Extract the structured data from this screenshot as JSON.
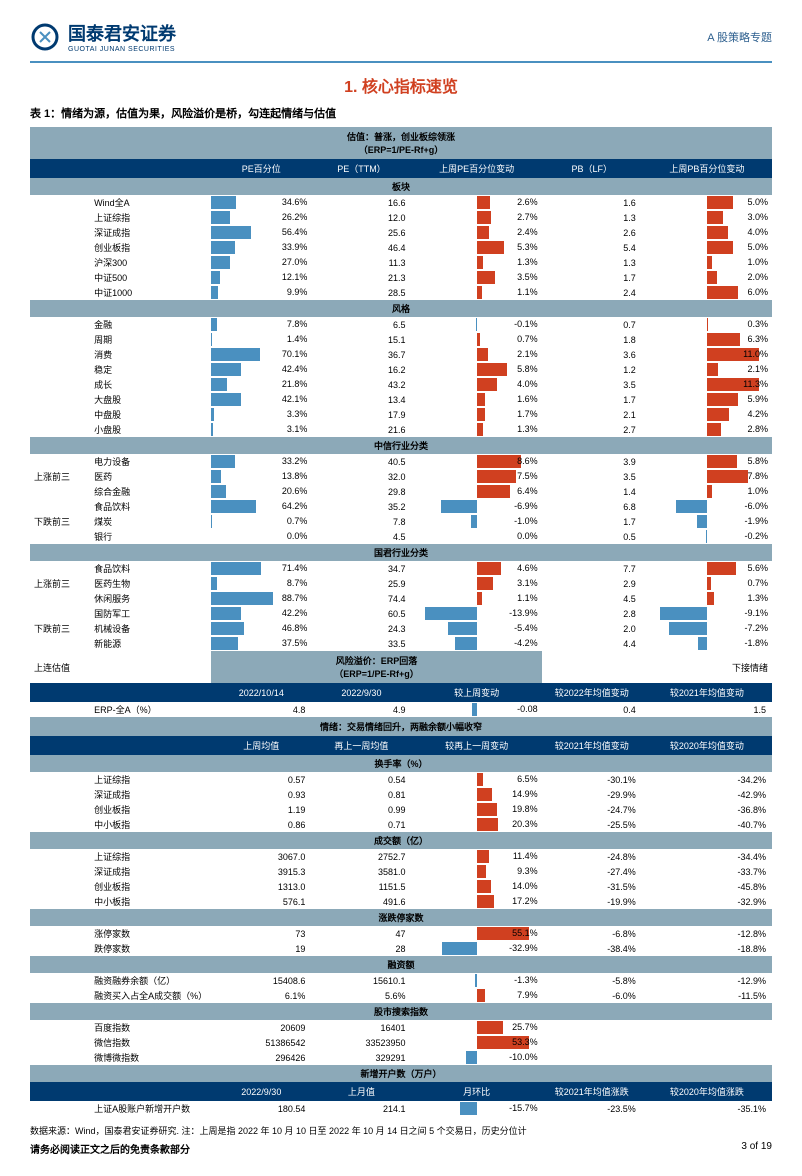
{
  "header": {
    "logo_cn": "国泰君安证券",
    "logo_en": "GUOTAI JUNAN SECURITIES",
    "doc_type": "A 股策略专题"
  },
  "title": "1. 核心指标速览",
  "table_caption": "表 1：情绪为源，估值为果，风险溢价是桥，勾连起情绪与估值",
  "section1_title": "估值：普涨，创业板综领涨\n（ERP=1/PE-Rf+g）",
  "cols1": [
    "PE百分位",
    "PE（TTM）",
    "上周PE百分位变动",
    "PB（LF）",
    "上周PB百分位变动"
  ],
  "subsec": {
    "bankuai": "板块",
    "fengge": "风格",
    "zhongxin": "中信行业分类",
    "guojun": "国君行业分类"
  },
  "bankuai": [
    {
      "name": "Wind全A",
      "pe_pct": "34.6%",
      "pe": "16.6",
      "pe_chg": "2.6%",
      "pe_chg_bar": 26,
      "pb": "1.6",
      "pb_chg": "5.0%",
      "pb_chg_bar": 50
    },
    {
      "name": "上证综指",
      "pe_pct": "26.2%",
      "pe": "12.0",
      "pe_chg": "2.7%",
      "pe_chg_bar": 27,
      "pb": "1.3",
      "pb_chg": "3.0%",
      "pb_chg_bar": 30
    },
    {
      "name": "深证成指",
      "pe_pct": "56.4%",
      "pe": "25.6",
      "pe_chg": "2.4%",
      "pe_chg_bar": 24,
      "pb": "2.6",
      "pb_chg": "4.0%",
      "pb_chg_bar": 40
    },
    {
      "name": "创业板指",
      "pe_pct": "33.9%",
      "pe": "46.4",
      "pe_chg": "5.3%",
      "pe_chg_bar": 53,
      "pb": "5.4",
      "pb_chg": "5.0%",
      "pb_chg_bar": 50
    },
    {
      "name": "沪深300",
      "pe_pct": "27.0%",
      "pe": "11.3",
      "pe_chg": "1.3%",
      "pe_chg_bar": 13,
      "pb": "1.3",
      "pb_chg": "1.0%",
      "pb_chg_bar": 10
    },
    {
      "name": "中证500",
      "pe_pct": "12.1%",
      "pe": "21.3",
      "pe_chg": "3.5%",
      "pe_chg_bar": 35,
      "pb": "1.7",
      "pb_chg": "2.0%",
      "pb_chg_bar": 20
    },
    {
      "name": "中证1000",
      "pe_pct": "9.9%",
      "pe": "28.5",
      "pe_chg": "1.1%",
      "pe_chg_bar": 11,
      "pb": "2.4",
      "pb_chg": "6.0%",
      "pb_chg_bar": 60
    }
  ],
  "fengge": [
    {
      "name": "金融",
      "pe_pct": "7.8%",
      "pe": "6.5",
      "pe_chg": "-0.1%",
      "pe_chg_bar": -1,
      "pb": "0.7",
      "pb_chg": "0.3%",
      "pb_chg_bar": 3
    },
    {
      "name": "周期",
      "pe_pct": "1.4%",
      "pe": "15.1",
      "pe_chg": "0.7%",
      "pe_chg_bar": 7,
      "pb": "1.8",
      "pb_chg": "6.3%",
      "pb_chg_bar": 63
    },
    {
      "name": "消费",
      "pe_pct": "70.1%",
      "pe": "36.7",
      "pe_chg": "2.1%",
      "pe_chg_bar": 21,
      "pb": "3.6",
      "pb_chg": "11.0%",
      "pb_chg_bar": 100
    },
    {
      "name": "稳定",
      "pe_pct": "42.4%",
      "pe": "16.2",
      "pe_chg": "5.8%",
      "pe_chg_bar": 58,
      "pb": "1.2",
      "pb_chg": "2.1%",
      "pb_chg_bar": 21
    },
    {
      "name": "成长",
      "pe_pct": "21.8%",
      "pe": "43.2",
      "pe_chg": "4.0%",
      "pe_chg_bar": 40,
      "pb": "3.5",
      "pb_chg": "11.3%",
      "pb_chg_bar": 100
    },
    {
      "name": "大盘股",
      "pe_pct": "42.1%",
      "pe": "13.4",
      "pe_chg": "1.6%",
      "pe_chg_bar": 16,
      "pb": "1.7",
      "pb_chg": "5.9%",
      "pb_chg_bar": 59
    },
    {
      "name": "中盘股",
      "pe_pct": "3.3%",
      "pe": "17.9",
      "pe_chg": "1.7%",
      "pe_chg_bar": 17,
      "pb": "2.1",
      "pb_chg": "4.2%",
      "pb_chg_bar": 42
    },
    {
      "name": "小盘股",
      "pe_pct": "3.1%",
      "pe": "21.6",
      "pe_chg": "1.3%",
      "pe_chg_bar": 13,
      "pb": "2.7",
      "pb_chg": "2.8%",
      "pb_chg_bar": 28
    }
  ],
  "zhongxin": {
    "up_label": "上涨前三",
    "down_label": "下跌前三",
    "up": [
      {
        "name": "电力设备",
        "pe_pct": "33.2%",
        "pe": "40.5",
        "pe_chg": "8.6%",
        "pe_chg_bar": 86,
        "pb": "3.9",
        "pb_chg": "5.8%",
        "pb_chg_bar": 58
      },
      {
        "name": "医药",
        "pe_pct": "13.8%",
        "pe": "32.0",
        "pe_chg": "7.5%",
        "pe_chg_bar": 75,
        "pb": "3.5",
        "pb_chg": "7.8%",
        "pb_chg_bar": 78
      },
      {
        "name": "综合金融",
        "pe_pct": "20.6%",
        "pe": "29.8",
        "pe_chg": "6.4%",
        "pe_chg_bar": 64,
        "pb": "1.4",
        "pb_chg": "1.0%",
        "pb_chg_bar": 10
      }
    ],
    "down": [
      {
        "name": "食品饮料",
        "pe_pct": "64.2%",
        "pe": "35.2",
        "pe_chg": "-6.9%",
        "pe_chg_bar": -69,
        "pb": "6.8",
        "pb_chg": "-6.0%",
        "pb_chg_bar": -60
      },
      {
        "name": "煤炭",
        "pe_pct": "0.7%",
        "pe": "7.8",
        "pe_chg": "-1.0%",
        "pe_chg_bar": -10,
        "pb": "1.7",
        "pb_chg": "-1.9%",
        "pb_chg_bar": -19
      },
      {
        "name": "银行",
        "pe_pct": "0.0%",
        "pe": "4.5",
        "pe_chg": "0.0%",
        "pe_chg_bar": 0,
        "pb": "0.5",
        "pb_chg": "-0.2%",
        "pb_chg_bar": -2
      }
    ]
  },
  "guojun": {
    "up": [
      {
        "name": "食品饮料",
        "pe_pct": "71.4%",
        "pe": "34.7",
        "pe_chg": "4.6%",
        "pe_chg_bar": 46,
        "pb": "7.7",
        "pb_chg": "5.6%",
        "pb_chg_bar": 56
      },
      {
        "name": "医药生物",
        "pe_pct": "8.7%",
        "pe": "25.9",
        "pe_chg": "3.1%",
        "pe_chg_bar": 31,
        "pb": "2.9",
        "pb_chg": "0.7%",
        "pb_chg_bar": 7
      },
      {
        "name": "休闲服务",
        "pe_pct": "88.7%",
        "pe": "74.4",
        "pe_chg": "1.1%",
        "pe_chg_bar": 11,
        "pb": "4.5",
        "pb_chg": "1.3%",
        "pb_chg_bar": 13
      }
    ],
    "down": [
      {
        "name": "国防军工",
        "pe_pct": "42.2%",
        "pe": "60.5",
        "pe_chg": "-13.9%",
        "pe_chg_bar": -100,
        "pb": "2.8",
        "pb_chg": "-9.1%",
        "pb_chg_bar": -91
      },
      {
        "name": "机械设备",
        "pe_pct": "46.8%",
        "pe": "24.3",
        "pe_chg": "-5.4%",
        "pe_chg_bar": -54,
        "pb": "2.0",
        "pb_chg": "-7.2%",
        "pb_chg_bar": -72
      },
      {
        "name": "新能源",
        "pe_pct": "37.5%",
        "pe": "33.5",
        "pe_chg": "-4.2%",
        "pe_chg_bar": -42,
        "pb": "4.4",
        "pb_chg": "-1.8%",
        "pb_chg_bar": -18
      }
    ]
  },
  "erp_section": {
    "left": "上连估值",
    "title": "风险溢价：ERP回落\n（ERP=1/PE-Rf+g）",
    "right": "下接情绪",
    "cols": [
      "2022/10/14",
      "2022/9/30",
      "较上周变动",
      "较2022年均值变动",
      "较2021年均值变动"
    ],
    "row": {
      "name": "ERP-全A（%）",
      "d1": "4.8",
      "d2": "4.9",
      "chg": "-0.08",
      "chg_bar": -8,
      "y22": "0.4",
      "y21": "1.5"
    }
  },
  "sentiment": {
    "title": "情绪：交易情绪回升，两融余额小幅收窄",
    "cols": [
      "上周均值",
      "再上一周均值",
      "较再上一周变动",
      "较2021年均值变动",
      "较2020年均值变动"
    ],
    "turnover_label": "换手率（%）",
    "turnover": [
      {
        "name": "上证综指",
        "v1": "0.57",
        "v2": "0.54",
        "chg": "6.5%",
        "bar": 13,
        "y21": "-30.1%",
        "y20": "-34.2%"
      },
      {
        "name": "深证成指",
        "v1": "0.93",
        "v2": "0.81",
        "chg": "14.9%",
        "bar": 30,
        "y21": "-29.9%",
        "y20": "-42.9%"
      },
      {
        "name": "创业板指",
        "v1": "1.19",
        "v2": "0.99",
        "chg": "19.8%",
        "bar": 40,
        "y21": "-24.7%",
        "y20": "-36.8%"
      },
      {
        "name": "中小板指",
        "v1": "0.86",
        "v2": "0.71",
        "chg": "20.3%",
        "bar": 41,
        "y21": "-25.5%",
        "y20": "-40.7%"
      }
    ],
    "volume_label": "成交额（亿）",
    "volume": [
      {
        "name": "上证综指",
        "v1": "3067.0",
        "v2": "2752.7",
        "chg": "11.4%",
        "bar": 23,
        "y21": "-24.8%",
        "y20": "-34.4%"
      },
      {
        "name": "深证成指",
        "v1": "3915.3",
        "v2": "3581.0",
        "chg": "9.3%",
        "bar": 19,
        "y21": "-27.4%",
        "y20": "-33.7%"
      },
      {
        "name": "创业板指",
        "v1": "1313.0",
        "v2": "1151.5",
        "chg": "14.0%",
        "bar": 28,
        "y21": "-31.5%",
        "y20": "-45.8%"
      },
      {
        "name": "中小板指",
        "v1": "576.1",
        "v2": "491.6",
        "chg": "17.2%",
        "bar": 34,
        "y21": "-19.9%",
        "y20": "-32.9%"
      }
    ],
    "limit_label": "涨跌停家数",
    "limit": [
      {
        "name": "涨停家数",
        "v1": "73",
        "v2": "47",
        "chg": "55.1%",
        "bar": 100,
        "y21": "-6.8%",
        "y20": "-12.8%"
      },
      {
        "name": "跌停家数",
        "v1": "19",
        "v2": "28",
        "chg": "-32.9%",
        "bar": -66,
        "y21": "-38.4%",
        "y20": "-18.8%"
      }
    ],
    "margin_label": "融资额",
    "margin": [
      {
        "name": "融资融券余额（亿）",
        "v1": "15408.6",
        "v2": "15610.1",
        "chg": "-1.3%",
        "bar": -3,
        "y21": "-5.8%",
        "y20": "-12.9%"
      },
      {
        "name": "融资买入占全A成交额（%）",
        "v1": "6.1%",
        "v2": "5.6%",
        "chg": "7.9%",
        "bar": 16,
        "y21": "-6.0%",
        "y20": "-11.5%"
      }
    ],
    "search_label": "股市搜索指数",
    "search": [
      {
        "name": "百度指数",
        "v1": "20609",
        "v2": "16401",
        "chg": "25.7%",
        "bar": 51,
        "y21": "",
        "y20": ""
      },
      {
        "name": "微信指数",
        "v1": "51386542",
        "v2": "33523950",
        "chg": "53.3%",
        "bar": 100,
        "y21": "",
        "y20": ""
      },
      {
        "name": "微博微指数",
        "v1": "296426",
        "v2": "329291",
        "chg": "-10.0%",
        "bar": -20,
        "y21": "",
        "y20": ""
      }
    ],
    "account_label": "新增开户数（万户）",
    "account_cols": [
      "2022/9/30",
      "上月值",
      "月环比",
      "较2021年均值涨跌",
      "较2020年均值涨跌"
    ],
    "account": {
      "name": "上证A股账户新增开户数",
      "v1": "180.54",
      "v2": "214.1",
      "chg": "-15.7%",
      "bar": -31,
      "y21": "-23.5%",
      "y20": "-35.1%"
    }
  },
  "footer": {
    "source": "数据来源：Wind，国泰君安证券研究. 注：上周是指 2022 年 10 月 10 日至 2022 年 10 月 14 日之间 5 个交易日，历史分位计",
    "disclaimer": "请务必阅读正文之后的免责条款部分",
    "page": "3 of 19"
  },
  "colors": {
    "navy": "#003a70",
    "gray": "#8ca9b8",
    "red": "#d04020",
    "blue": "#4a90c0"
  }
}
